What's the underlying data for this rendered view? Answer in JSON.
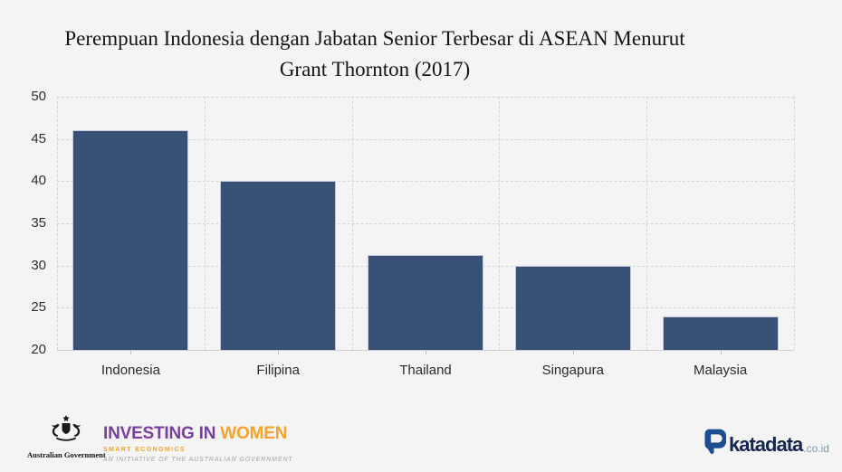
{
  "chart_data": {
    "type": "bar",
    "title": "Perempuan Indonesia dengan Jabatan Senior Terbesar di ASEAN  Menurut Grant Thornton (2017)",
    "title_lines": [
      "Perempuan Indonesia dengan Jabatan Senior Terbesar di ASEAN  Menurut",
      "Grant Thornton (2017)"
    ],
    "categories": [
      "Indonesia",
      "Filipina",
      "Thailand",
      "Singapura",
      "Malaysia"
    ],
    "values": [
      46,
      40,
      31.2,
      30,
      24
    ],
    "xlabel": "",
    "ylabel": "",
    "ylim": [
      20,
      50
    ],
    "yticks": [
      20,
      25,
      30,
      35,
      40,
      45,
      50
    ],
    "grid": "dashed, horizontal and vertical",
    "legend": "none",
    "bar_color": "#395177"
  },
  "footer": {
    "australian_government": {
      "label": "Australian Government",
      "emblem": "australian-coat-of-arms"
    },
    "investing_in_women": {
      "title_part1": "INVESTING IN",
      "title_part2": "WOMEN",
      "tagline": "SMART ECONOMICS",
      "note": "AN INITIATIVE OF THE AUSTRALIAN GOVERNMENT",
      "purple": "#7a3f9d",
      "orange": "#f5a32c"
    },
    "katadata": {
      "brand": "katadata",
      "suffix": ".co.id",
      "icon": "katadata-d-logo",
      "navy": "#16254e",
      "icon_blue": "#1d4e93",
      "suffix_gray": "#7e99a7"
    }
  },
  "theme": {
    "page_background": "#f4f4f5",
    "gridline_color": "#d4d4da",
    "axis_color": "#cfcfd5",
    "label_color": "#2f2f2f",
    "title_color": "#151515"
  }
}
